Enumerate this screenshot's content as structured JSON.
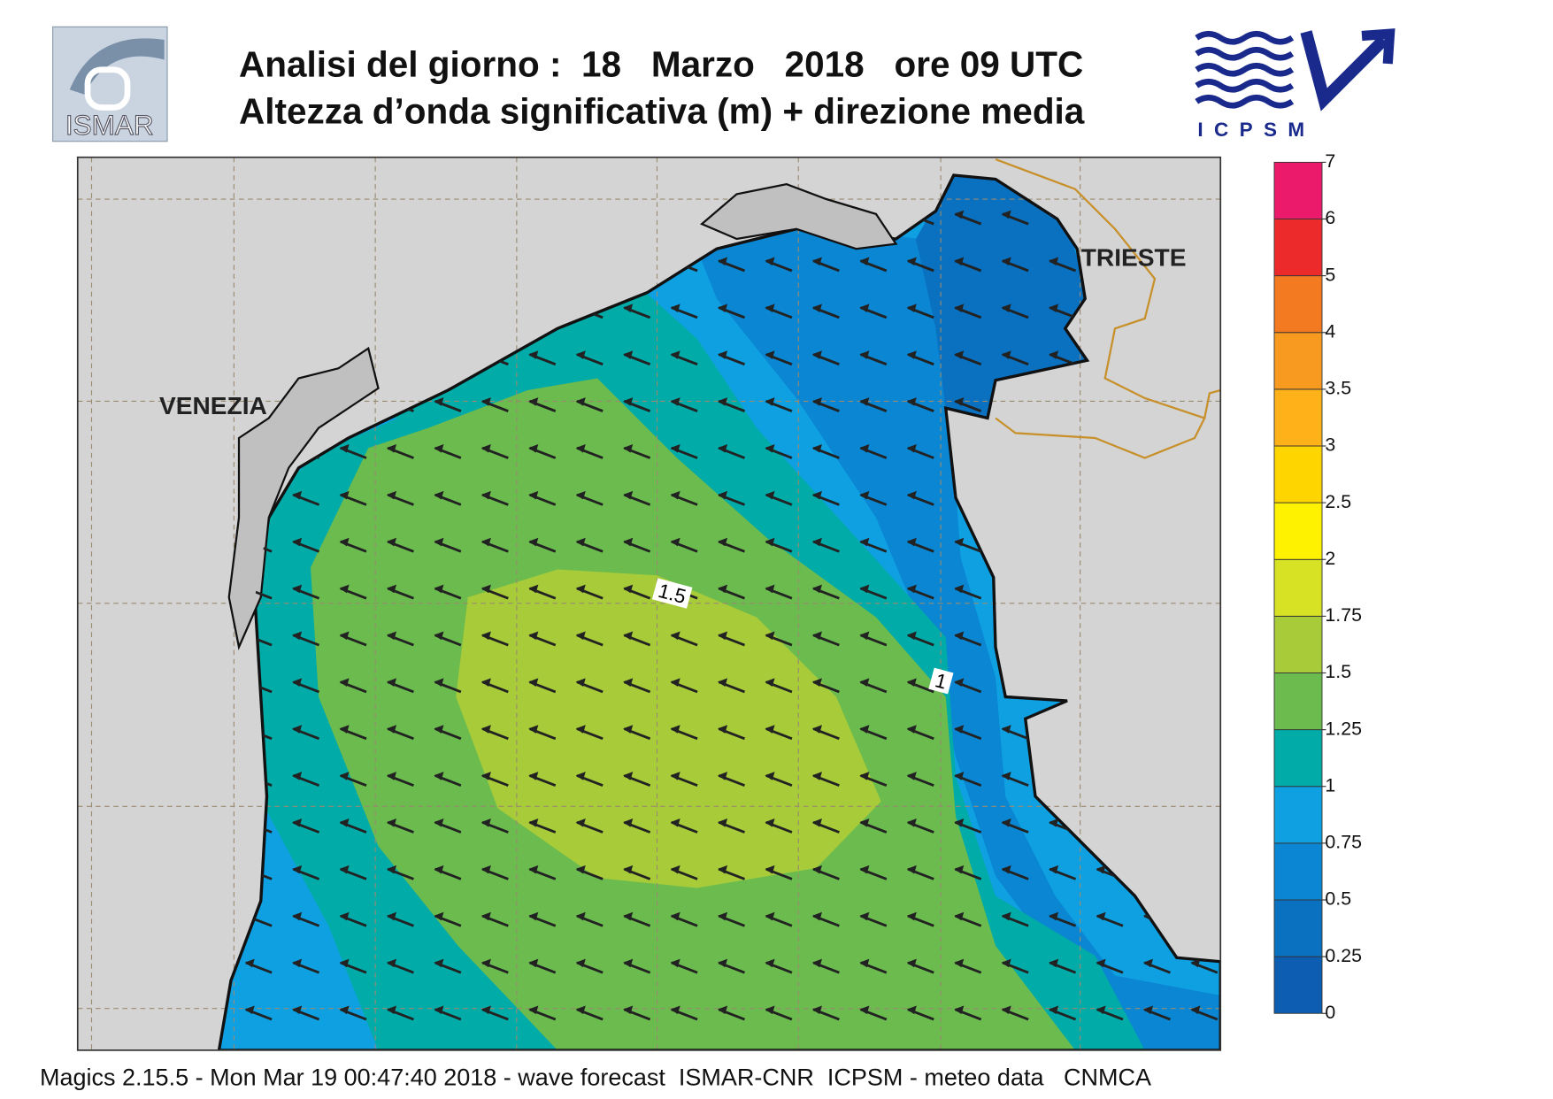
{
  "header": {
    "title_line1": "Analisi del giorno :  18   Marzo   2018   ore 09 UTC",
    "title_line2": "Altezza d’onda significativa (m) + direzione media",
    "logo_left": "ISMAR",
    "logo_right": "ICPSM"
  },
  "map": {
    "places": [
      "VENEZIA",
      "TRIESTE"
    ],
    "contour_labels": [
      "1.5",
      "1"
    ]
  },
  "legend": {
    "levels": [
      0,
      0.25,
      0.5,
      0.75,
      1,
      1.25,
      1.5,
      1.75,
      2,
      2.5,
      3,
      3.5,
      4,
      5,
      6,
      7
    ],
    "colors": [
      "#0d5eb2",
      "#0a70c0",
      "#0b86d2",
      "#0fa0e2",
      "#00aba8",
      "#6bbb4f",
      "#a7cb39",
      "#d8e224",
      "#fff200",
      "#ffd500",
      "#ffb11a",
      "#f89a1f",
      "#f37a20",
      "#ed2a2b",
      "#ec1a6b"
    ]
  },
  "footer": "Magics 2.15.5 - Mon Mar 19 00:47:40 2018 - wave forecast  ISMAR-CNR  ICPSM - meteo data   CNMCA"
}
